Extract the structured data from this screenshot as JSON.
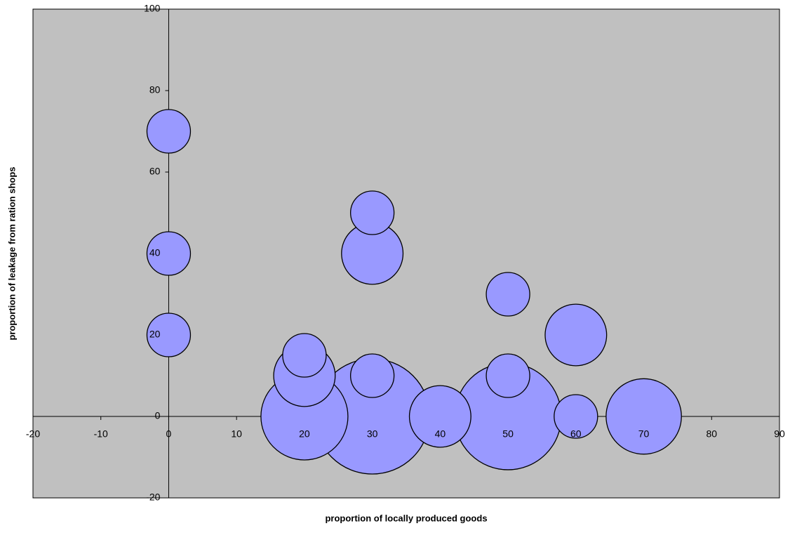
{
  "chart_data": {
    "type": "bubble",
    "x_label": "proportion of locally produced goods",
    "y_label": "proportion of leakage from ration shops",
    "x": [
      30,
      50,
      20,
      70,
      20,
      30,
      40,
      60,
      0,
      0,
      0,
      20,
      30,
      30,
      50,
      50,
      60
    ],
    "y": [
      0,
      0,
      0,
      0,
      10,
      40,
      0,
      20,
      70,
      40,
      20,
      15,
      10,
      50,
      10,
      30,
      0
    ],
    "sizes": [
      7,
      6,
      4,
      3,
      2,
      2,
      2,
      2,
      1,
      1,
      1,
      1,
      1,
      1,
      1,
      1,
      1
    ],
    "color": "#9999ff",
    "xlim": [
      -20,
      90
    ],
    "ylim": [
      -20,
      100
    ],
    "xticks": [
      -20,
      -10,
      0,
      10,
      20,
      30,
      40,
      50,
      60,
      70,
      80,
      90
    ],
    "yticks": [
      -20,
      0,
      20,
      40,
      60,
      80,
      100
    ],
    "background": "#c0c0c0"
  }
}
